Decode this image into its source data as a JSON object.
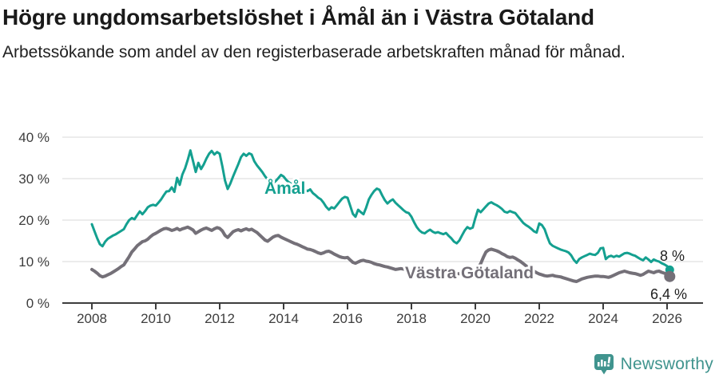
{
  "header": {
    "title": "Högre ungdomsarbetslöshet i Åmål än i Västra Götaland",
    "subtitle": "Arbetssökande som andel av den registerbaserade arbetskraften månad för månad."
  },
  "colors": {
    "amal_line": "#14a090",
    "vastra_gotaland_line": "#747078",
    "grid": "#dadada",
    "axis": "#3d3d3d",
    "brand_teal": "#40948e"
  },
  "chart_data": {
    "type": "line",
    "unit": "%",
    "frequency": "monthly",
    "x_start": "2008-01",
    "x_end": "2026-02",
    "ylim": [
      0,
      40
    ],
    "grid": "horizontal",
    "legend_position": "inline-labels",
    "y_ticks": [
      {
        "value": 0,
        "label": "0 %"
      },
      {
        "value": 10,
        "label": "10 %"
      },
      {
        "value": 20,
        "label": "20 %"
      },
      {
        "value": 30,
        "label": "30 %"
      },
      {
        "value": 40,
        "label": "40 %"
      }
    ],
    "x_ticks": [
      {
        "value": 2008,
        "label": "2008"
      },
      {
        "value": 2010,
        "label": "2010"
      },
      {
        "value": 2012,
        "label": "2012"
      },
      {
        "value": 2014,
        "label": "2014"
      },
      {
        "value": 2016,
        "label": "2016"
      },
      {
        "value": 2018,
        "label": "2018"
      },
      {
        "value": 2020,
        "label": "2020"
      },
      {
        "value": 2022,
        "label": "2022"
      },
      {
        "value": 2024,
        "label": "2024"
      },
      {
        "value": 2026,
        "label": "2026"
      }
    ],
    "series": [
      {
        "id": "amal",
        "name": "Åmål",
        "color": "#14a090",
        "line_width": 3,
        "end_dot_radius": 5.5,
        "end_label": "8 %",
        "values": [
          19.0,
          17.3,
          15.6,
          14.2,
          13.7,
          14.8,
          15.5,
          15.9,
          16.3,
          16.6,
          17.0,
          17.4,
          17.8,
          19.0,
          20.0,
          20.5,
          20.2,
          21.2,
          22.1,
          21.4,
          22.2,
          23.1,
          23.5,
          23.7,
          23.5,
          24.2,
          25.0,
          26.0,
          26.9,
          27.0,
          27.9,
          26.8,
          30.2,
          28.5,
          31.0,
          32.5,
          34.5,
          36.8,
          34.2,
          31.6,
          33.8,
          32.3,
          33.4,
          34.8,
          36.0,
          36.7,
          35.8,
          36.4,
          36.0,
          33.0,
          29.5,
          27.5,
          28.8,
          30.5,
          32.0,
          33.5,
          35.2,
          36.0,
          35.5,
          36.1,
          35.8,
          34.2,
          33.2,
          32.4,
          31.6,
          30.6,
          29.8,
          29.2,
          28.9,
          29.4,
          30.1,
          30.9,
          30.5,
          29.7,
          29.1,
          28.7,
          28.3,
          28.7,
          28.1,
          27.7,
          27.3,
          27.0,
          27.4,
          26.5,
          26.0,
          25.4,
          25.0,
          24.2,
          23.2,
          22.5,
          23.1,
          22.8,
          23.6,
          24.4,
          25.2,
          25.6,
          25.4,
          23.5,
          21.5,
          20.8,
          22.5,
          21.9,
          21.4,
          23.0,
          25.0,
          26.1,
          27.0,
          27.6,
          27.3,
          26.0,
          24.8,
          24.0,
          24.6,
          25.0,
          24.2,
          23.6,
          23.0,
          22.4,
          21.9,
          21.7,
          20.8,
          19.5,
          18.3,
          17.5,
          17.0,
          16.8,
          17.3,
          17.7,
          17.2,
          16.9,
          17.1,
          16.8,
          16.6,
          16.9,
          16.2,
          15.6,
          14.8,
          14.4,
          15.1,
          16.3,
          17.5,
          18.3,
          17.9,
          18.2,
          20.5,
          22.5,
          21.9,
          22.6,
          23.3,
          24.0,
          24.3,
          23.9,
          23.6,
          23.2,
          22.7,
          22.0,
          21.8,
          22.2,
          21.9,
          21.7,
          20.9,
          20.1,
          19.3,
          18.8,
          18.4,
          17.9,
          17.3,
          17.0,
          19.2,
          18.8,
          17.8,
          16.0,
          14.4,
          13.8,
          13.5,
          13.2,
          12.9,
          12.7,
          12.5,
          12.2,
          11.5,
          10.4,
          9.7,
          10.6,
          11.0,
          11.3,
          11.6,
          11.9,
          11.7,
          11.6,
          12.1,
          13.2,
          13.3,
          10.6,
          11.2,
          11.4,
          11.1,
          11.4,
          11.2,
          11.6,
          12.0,
          12.1,
          11.9,
          11.6,
          11.4,
          11.0,
          10.6,
          10.3,
          11.0,
          10.5,
          9.9,
          10.5,
          10.2,
          10.0,
          9.6,
          9.3,
          8.9,
          8.0
        ]
      },
      {
        "id": "vastra-gotaland",
        "name": "Västra Götaland",
        "color": "#747078",
        "line_width": 4,
        "end_dot_radius": 7,
        "end_label": "6,4 %",
        "values": [
          8.1,
          7.7,
          7.2,
          6.6,
          6.3,
          6.5,
          6.8,
          7.1,
          7.5,
          7.9,
          8.3,
          8.8,
          9.2,
          10.2,
          11.2,
          12.3,
          13.0,
          13.8,
          14.3,
          14.8,
          15.0,
          15.4,
          16.0,
          16.5,
          16.8,
          17.2,
          17.6,
          17.9,
          18.0,
          17.8,
          17.5,
          17.7,
          18.0,
          17.6,
          17.9,
          18.1,
          18.3,
          18.0,
          17.6,
          16.8,
          17.2,
          17.6,
          17.9,
          18.1,
          17.8,
          17.5,
          17.9,
          18.2,
          18.0,
          17.4,
          16.3,
          15.8,
          16.5,
          17.2,
          17.5,
          17.7,
          17.4,
          17.7,
          17.9,
          17.6,
          17.8,
          17.4,
          17.0,
          16.4,
          15.8,
          15.2,
          14.9,
          15.4,
          15.9,
          16.2,
          16.3,
          15.9,
          15.6,
          15.3,
          15.0,
          14.7,
          14.4,
          14.2,
          13.9,
          13.6,
          13.3,
          13.0,
          12.9,
          12.7,
          12.4,
          12.1,
          11.9,
          12.1,
          12.4,
          12.5,
          12.2,
          11.8,
          11.5,
          11.2,
          11.0,
          10.9,
          11.0,
          10.4,
          9.8,
          9.6,
          9.9,
          10.2,
          10.3,
          10.1,
          10.0,
          9.8,
          9.5,
          9.3,
          9.2,
          9.0,
          8.8,
          8.7,
          8.5,
          8.3,
          8.1,
          8.2,
          8.3,
          8.2,
          8.1,
          8.0,
          7.8,
          7.6,
          7.5,
          7.4,
          7.3,
          7.3,
          7.2,
          7.2,
          7.3,
          7.2,
          7.2,
          7.3,
          7.3,
          7.2,
          7.1,
          7.1,
          7.0,
          7.0,
          7.1,
          7.2,
          7.3,
          7.3,
          7.4,
          7.5,
          7.8,
          8.5,
          9.5,
          11.0,
          12.3,
          12.8,
          13.0,
          12.8,
          12.6,
          12.3,
          11.9,
          11.6,
          11.2,
          11.0,
          11.1,
          10.8,
          10.4,
          10.0,
          9.5,
          9.0,
          8.5,
          8.1,
          7.7,
          7.3,
          7.0,
          6.8,
          6.6,
          6.5,
          6.6,
          6.7,
          6.5,
          6.4,
          6.3,
          6.1,
          5.9,
          5.7,
          5.5,
          5.3,
          5.2,
          5.5,
          5.8,
          6.0,
          6.2,
          6.3,
          6.4,
          6.5,
          6.5,
          6.4,
          6.4,
          6.3,
          6.2,
          6.4,
          6.7,
          7.0,
          7.3,
          7.5,
          7.7,
          7.5,
          7.3,
          7.2,
          7.1,
          6.9,
          6.7,
          6.9,
          7.3,
          7.7,
          7.5,
          7.3,
          7.6,
          7.7,
          7.4,
          7.2,
          7.0,
          6.4
        ]
      }
    ]
  },
  "footer": {
    "brand": "Newsworthy"
  }
}
